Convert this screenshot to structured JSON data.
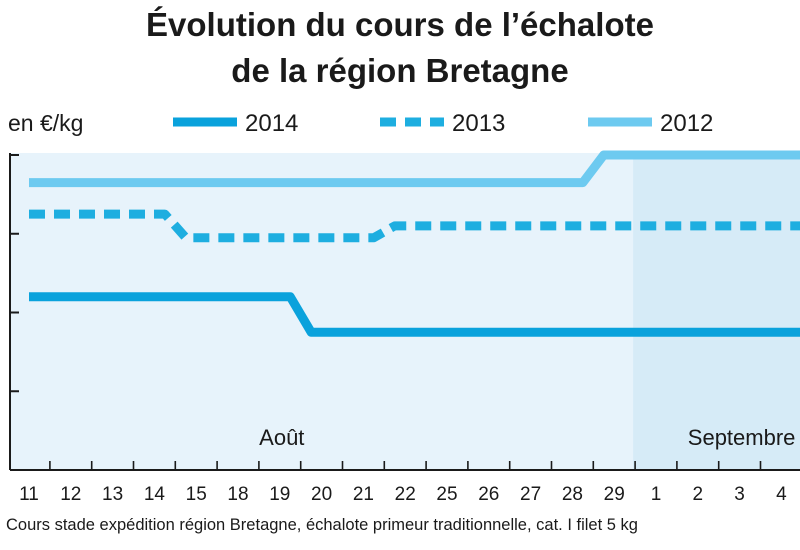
{
  "chart_data": {
    "type": "line",
    "title": "Évolution du cours de l’échalote",
    "subtitle": "de la région Bretagne",
    "ylabel": "en €/kg",
    "categories": [
      "11",
      "12",
      "13",
      "14",
      "15",
      "18",
      "19",
      "20",
      "21",
      "22",
      "25",
      "26",
      "27",
      "28",
      "29",
      "1",
      "2",
      "3",
      "4"
    ],
    "month_labels": [
      {
        "label": "Août",
        "category": "19"
      },
      {
        "label": "Septembre",
        "category": "3"
      }
    ],
    "september_shaded_from": "29",
    "legend_placement": "top",
    "ylim": [
      0,
      4
    ],
    "y_ticks_count": 4,
    "series": [
      {
        "name": "2014",
        "style": "solid",
        "color": "#0aa2dc",
        "values": [
          2.2,
          2.2,
          2.2,
          2.2,
          2.2,
          2.2,
          2.2,
          1.75,
          1.75,
          1.75,
          1.75,
          1.75,
          1.75,
          1.75,
          1.75,
          1.75,
          1.75,
          1.75,
          1.75
        ]
      },
      {
        "name": "2013",
        "style": "dashed",
        "color": "#1eaee0",
        "values": [
          3.25,
          3.25,
          3.25,
          3.25,
          2.95,
          2.95,
          2.95,
          2.95,
          2.95,
          3.1,
          3.1,
          3.1,
          3.1,
          3.1,
          3.1,
          3.1,
          3.1,
          3.1,
          3.1
        ]
      },
      {
        "name": "2012",
        "style": "solid",
        "color": "#6dcaf0",
        "values": [
          3.65,
          3.65,
          3.65,
          3.65,
          3.65,
          3.65,
          3.65,
          3.65,
          3.65,
          3.65,
          3.65,
          3.65,
          3.65,
          3.65,
          4.0,
          4.0,
          4.0,
          4.0,
          4.0
        ]
      }
    ],
    "caption": "Cours stade expédition région Bretagne, échalote primeur traditionnelle, cat. I filet 5 kg",
    "colors": {
      "plot_bg": "#e7f3fb",
      "september_bg": "#d6ebf7",
      "axis": "#1a1a1a"
    }
  }
}
